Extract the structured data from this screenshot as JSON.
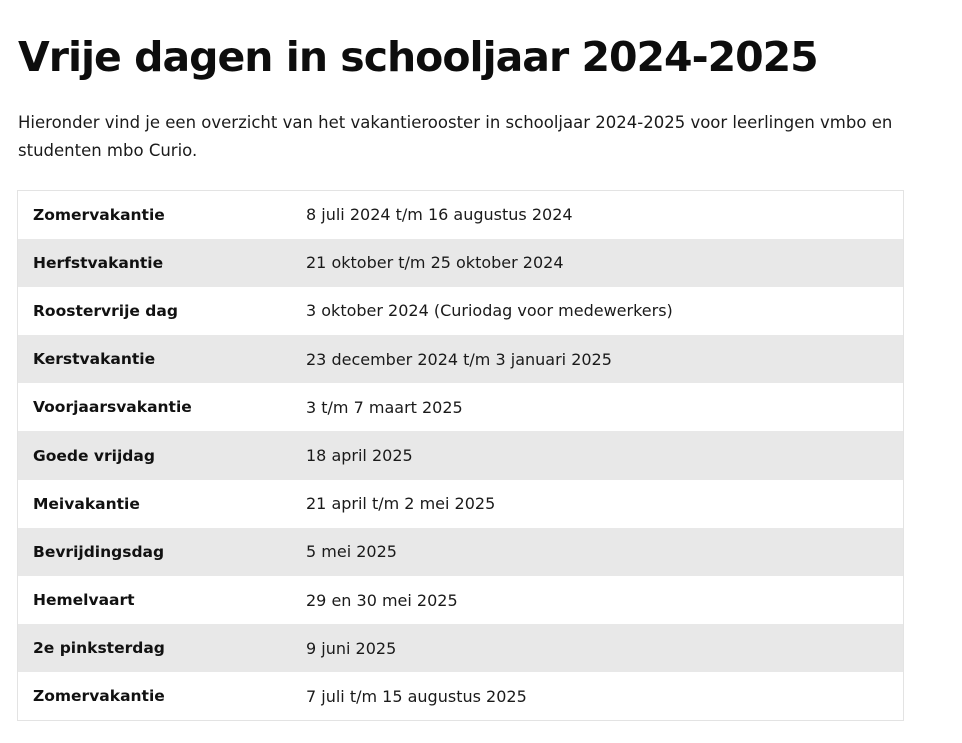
{
  "page": {
    "title": "Vrije dagen in schooljaar 2024-2025",
    "intro": "Hieronder vind je een overzicht van het vakantierooster in schooljaar 2024-2025 voor leerlingen vmbo en studenten mbo Curio."
  },
  "table": {
    "rows": [
      {
        "name": "Zomervakantie",
        "date": "8 juli 2024 t/m 16 augustus 2024"
      },
      {
        "name": "Herfstvakantie",
        "date": "21 oktober t/m 25 oktober 2024"
      },
      {
        "name": "Roostervrije dag",
        "date": "3 oktober 2024 (Curiodag voor medewerkers)"
      },
      {
        "name": "Kerstvakantie",
        "date": "23 december 2024 t/m 3 januari 2025"
      },
      {
        "name": "Voorjaarsvakantie",
        "date": "3 t/m 7 maart 2025"
      },
      {
        "name": "Goede vrijdag",
        "date": "18 april 2025"
      },
      {
        "name": "Meivakantie",
        "date": "21 april t/m 2 mei 2025"
      },
      {
        "name": "Bevrijdingsdag",
        "date": "5 mei 2025"
      },
      {
        "name": "Hemelvaart",
        "date": "29 en 30 mei 2025"
      },
      {
        "name": "2e pinksterdag",
        "date": "9 juni 2025"
      },
      {
        "name": "Zomervakantie",
        "date": "7 juli t/m 15 augustus 2025"
      }
    ]
  },
  "colors": {
    "row_alt": "#e8e8e8",
    "row_base": "#ffffff",
    "text": "#111111"
  }
}
